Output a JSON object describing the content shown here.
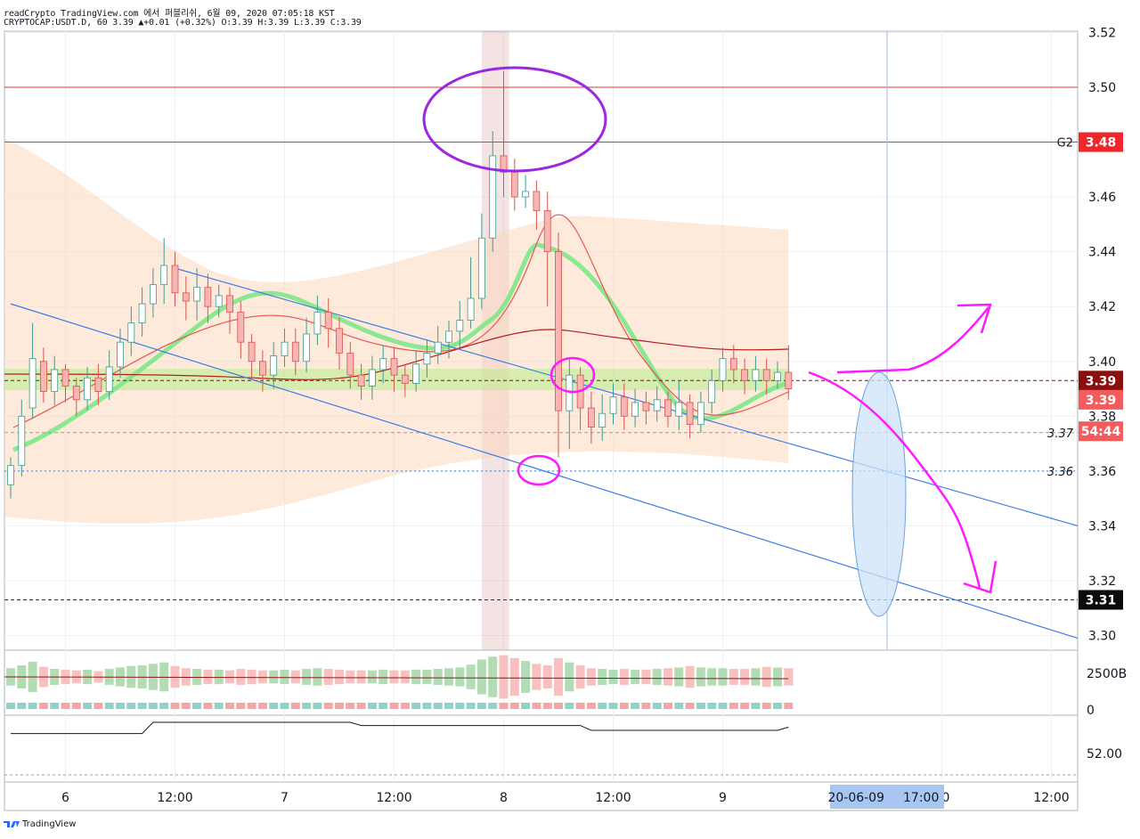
{
  "header": {
    "line1": "readCrypto TradingView.com 에서 퍼블리쉬, 6월 09, 2020 07:05:18 KST",
    "line2": "CRYPTOCAP:USDT.D, 60 3.39 ▲+0.01 (+0.32%) O:3.39 H:3.39 L:3.39 C:3.39"
  },
  "footer": {
    "brand": "TradingView"
  },
  "colors": {
    "up": "#26a69a",
    "down": "#ef5350",
    "hline": "#e53935",
    "trend": "#3d7be6",
    "annot": "#ff19ff",
    "circle": "#9c27e0"
  },
  "chart_data": {
    "type": "line",
    "symbol": "CRYPTOCAP:USDT.D",
    "interval": "60",
    "ylim": [
      3.297,
      3.52
    ],
    "price_ticks": [
      "3.30",
      "3.32",
      "3.34",
      "3.36",
      "3.38",
      "3.40",
      "3.42",
      "3.44",
      "3.46",
      "3.48",
      "3.50",
      "3.52"
    ],
    "time_ticks": [
      {
        "label": "6",
        "i": 5
      },
      {
        "label": "12:00",
        "i": 15
      },
      {
        "label": "7",
        "i": 25
      },
      {
        "label": "12:00",
        "i": 35
      },
      {
        "label": "8",
        "i": 45
      },
      {
        "label": "12:00",
        "i": 55
      },
      {
        "label": "9",
        "i": 65
      },
      {
        "label": "10",
        "i": 85
      },
      {
        "label": "12:00",
        "i": 95
      }
    ],
    "cursor": {
      "date": "20-06-09",
      "time": "17:00",
      "i": 80
    },
    "badges": [
      {
        "label": "3.48",
        "value": 3.48,
        "color": "#f0262b",
        "text_color": "#ffffff"
      },
      {
        "label": "3.39",
        "value": 3.393,
        "color": "#8b0f0f",
        "text_color": "#ffffff"
      },
      {
        "label": "3.39",
        "value": 3.386,
        "color": "#f25c5c",
        "text_color": "#ffffff"
      },
      {
        "label": "54:44",
        "value": 3.3745,
        "color": "#f25c5c",
        "text_color": "#ffffff"
      },
      {
        "label": "3.31",
        "value": 3.313,
        "color": "#0b0b0b",
        "text_color": "#ffffff"
      }
    ],
    "plain_labels": [
      {
        "label": "G2",
        "value": 3.48
      },
      {
        "label": "3.37",
        "value": 3.374
      },
      {
        "label": "3.36",
        "value": 3.36
      }
    ],
    "horizontal_lines": [
      {
        "value": 3.5,
        "style": "solid",
        "color": "#e53935"
      },
      {
        "value": 3.48,
        "style": "solid",
        "color": "#e53935"
      },
      {
        "value": 3.393,
        "style": "dashed",
        "color": "#8b0f0f"
      },
      {
        "value": 3.374,
        "style": "dashed",
        "color": "#9e9e9e"
      },
      {
        "value": 3.36,
        "style": "dotted",
        "color": "#3d7be6"
      },
      {
        "value": 3.313,
        "style": "dashed",
        "color": "#333333"
      }
    ],
    "trendlines": [
      {
        "x1": 0,
        "y1": 3.421,
        "x2": 105,
        "y2": 3.299
      },
      {
        "x1": 15,
        "y1": 3.434,
        "x2": 105,
        "y2": 3.34
      }
    ],
    "highlight_band": {
      "i1": 43,
      "i2": 45.5
    },
    "volume_axis": [
      "2500B",
      "0"
    ],
    "rsi_axis": [
      "52.00"
    ],
    "candles": [
      [
        3.355,
        3.362,
        3.35,
        3.365
      ],
      [
        3.362,
        3.38,
        3.358,
        3.386
      ],
      [
        3.383,
        3.401,
        3.379,
        3.414
      ],
      [
        3.4,
        3.389,
        3.385,
        3.405
      ],
      [
        3.389,
        3.397,
        3.384,
        3.402
      ],
      [
        3.397,
        3.391,
        3.385,
        3.399
      ],
      [
        3.391,
        3.386,
        3.38,
        3.394
      ],
      [
        3.386,
        3.394,
        3.382,
        3.398
      ],
      [
        3.394,
        3.389,
        3.384,
        3.399
      ],
      [
        3.389,
        3.398,
        3.386,
        3.404
      ],
      [
        3.398,
        3.407,
        3.394,
        3.412
      ],
      [
        3.407,
        3.414,
        3.402,
        3.42
      ],
      [
        3.414,
        3.421,
        3.409,
        3.427
      ],
      [
        3.421,
        3.428,
        3.416,
        3.434
      ],
      [
        3.428,
        3.435,
        3.421,
        3.445
      ],
      [
        3.435,
        3.425,
        3.42,
        3.44
      ],
      [
        3.425,
        3.422,
        3.415,
        3.431
      ],
      [
        3.422,
        3.427,
        3.415,
        3.434
      ],
      [
        3.427,
        3.42,
        3.414,
        3.432
      ],
      [
        3.42,
        3.424,
        3.416,
        3.428
      ],
      [
        3.424,
        3.418,
        3.41,
        3.427
      ],
      [
        3.418,
        3.407,
        3.401,
        3.422
      ],
      [
        3.407,
        3.4,
        3.394,
        3.41
      ],
      [
        3.4,
        3.395,
        3.389,
        3.404
      ],
      [
        3.395,
        3.402,
        3.39,
        3.407
      ],
      [
        3.402,
        3.407,
        3.398,
        3.412
      ],
      [
        3.407,
        3.4,
        3.395,
        3.412
      ],
      [
        3.4,
        3.41,
        3.396,
        3.416
      ],
      [
        3.41,
        3.418,
        3.406,
        3.424
      ],
      [
        3.418,
        3.412,
        3.405,
        3.423
      ],
      [
        3.412,
        3.403,
        3.397,
        3.416
      ],
      [
        3.403,
        3.395,
        3.39,
        3.407
      ],
      [
        3.395,
        3.391,
        3.386,
        3.399
      ],
      [
        3.391,
        3.397,
        3.386,
        3.402
      ],
      [
        3.397,
        3.401,
        3.392,
        3.406
      ],
      [
        3.401,
        3.395,
        3.389,
        3.405
      ],
      [
        3.395,
        3.392,
        3.387,
        3.399
      ],
      [
        3.392,
        3.399,
        3.389,
        3.404
      ],
      [
        3.399,
        3.403,
        3.394,
        3.408
      ],
      [
        3.403,
        3.407,
        3.399,
        3.413
      ],
      [
        3.407,
        3.411,
        3.401,
        3.415
      ],
      [
        3.411,
        3.415,
        3.405,
        3.422
      ],
      [
        3.415,
        3.423,
        3.412,
        3.438
      ],
      [
        3.423,
        3.445,
        3.419,
        3.454
      ],
      [
        3.445,
        3.475,
        3.44,
        3.484
      ],
      [
        3.475,
        3.469,
        3.46,
        3.506
      ],
      [
        3.469,
        3.46,
        3.455,
        3.474
      ],
      [
        3.46,
        3.462,
        3.456,
        3.468
      ],
      [
        3.462,
        3.455,
        3.448,
        3.466
      ],
      [
        3.455,
        3.44,
        3.42,
        3.462
      ],
      [
        3.44,
        3.382,
        3.365,
        3.447
      ],
      [
        3.382,
        3.395,
        3.368,
        3.401
      ],
      [
        3.395,
        3.383,
        3.375,
        3.398
      ],
      [
        3.383,
        3.376,
        3.37,
        3.389
      ],
      [
        3.376,
        3.381,
        3.371,
        3.388
      ],
      [
        3.381,
        3.387,
        3.377,
        3.392
      ],
      [
        3.387,
        3.38,
        3.375,
        3.392
      ],
      [
        3.38,
        3.385,
        3.376,
        3.39
      ],
      [
        3.385,
        3.382,
        3.377,
        3.389
      ],
      [
        3.382,
        3.386,
        3.378,
        3.391
      ],
      [
        3.386,
        3.38,
        3.376,
        3.389
      ],
      [
        3.38,
        3.385,
        3.375,
        3.393
      ],
      [
        3.385,
        3.377,
        3.372,
        3.388
      ],
      [
        3.377,
        3.385,
        3.374,
        3.389
      ],
      [
        3.385,
        3.393,
        3.381,
        3.397
      ],
      [
        3.393,
        3.401,
        3.389,
        3.405
      ],
      [
        3.401,
        3.397,
        3.392,
        3.406
      ],
      [
        3.397,
        3.393,
        3.388,
        3.401
      ],
      [
        3.393,
        3.397,
        3.389,
        3.402
      ],
      [
        3.397,
        3.393,
        3.388,
        3.401
      ],
      [
        3.393,
        3.396,
        3.39,
        3.4
      ],
      [
        3.396,
        3.39,
        3.386,
        3.406
      ]
    ],
    "volume": [
      1.2,
      1.6,
      2.1,
      1.4,
      1.1,
      1.0,
      0.9,
      1.0,
      0.8,
      1.1,
      1.3,
      1.5,
      1.6,
      1.8,
      2.0,
      1.5,
      1.2,
      1.1,
      1.0,
      1.0,
      0.9,
      1.1,
      1.0,
      0.9,
      0.9,
      1.0,
      0.9,
      1.1,
      1.2,
      1.1,
      1.0,
      0.9,
      0.9,
      0.9,
      1.0,
      0.9,
      0.9,
      1.0,
      1.0,
      1.1,
      1.2,
      1.3,
      1.7,
      2.4,
      2.8,
      3.0,
      2.6,
      2.2,
      1.8,
      1.6,
      2.6,
      2.0,
      1.6,
      1.2,
      1.1,
      1.0,
      1.1,
      1.0,
      1.0,
      1.1,
      1.2,
      1.3,
      1.5,
      1.3,
      1.2,
      1.2,
      1.1,
      1.1,
      1.2,
      1.4,
      1.3,
      1.2
    ],
    "rsi_line": [
      0.3,
      0.3,
      0.3,
      0.3,
      0.3,
      0.3,
      0.3,
      0.3,
      0.3,
      0.3,
      0.3,
      0.3,
      0.3,
      1.0,
      1.0,
      1.0,
      1.0,
      1.0,
      1.0,
      1.0,
      1.0,
      1.0,
      1.0,
      1.0,
      1.0,
      1.0,
      1.0,
      1.0,
      1.0,
      1.0,
      1.0,
      1.0,
      0.8,
      0.8,
      0.8,
      0.8,
      0.8,
      0.8,
      0.8,
      0.8,
      0.8,
      0.8,
      0.8,
      0.8,
      0.8,
      0.8,
      0.8,
      0.8,
      0.8,
      0.8,
      0.8,
      0.8,
      0.8,
      0.5,
      0.5,
      0.5,
      0.5,
      0.5,
      0.5,
      0.5,
      0.5,
      0.5,
      0.5,
      0.5,
      0.5,
      0.5,
      0.5,
      0.5,
      0.5,
      0.5,
      0.5,
      0.7
    ]
  }
}
